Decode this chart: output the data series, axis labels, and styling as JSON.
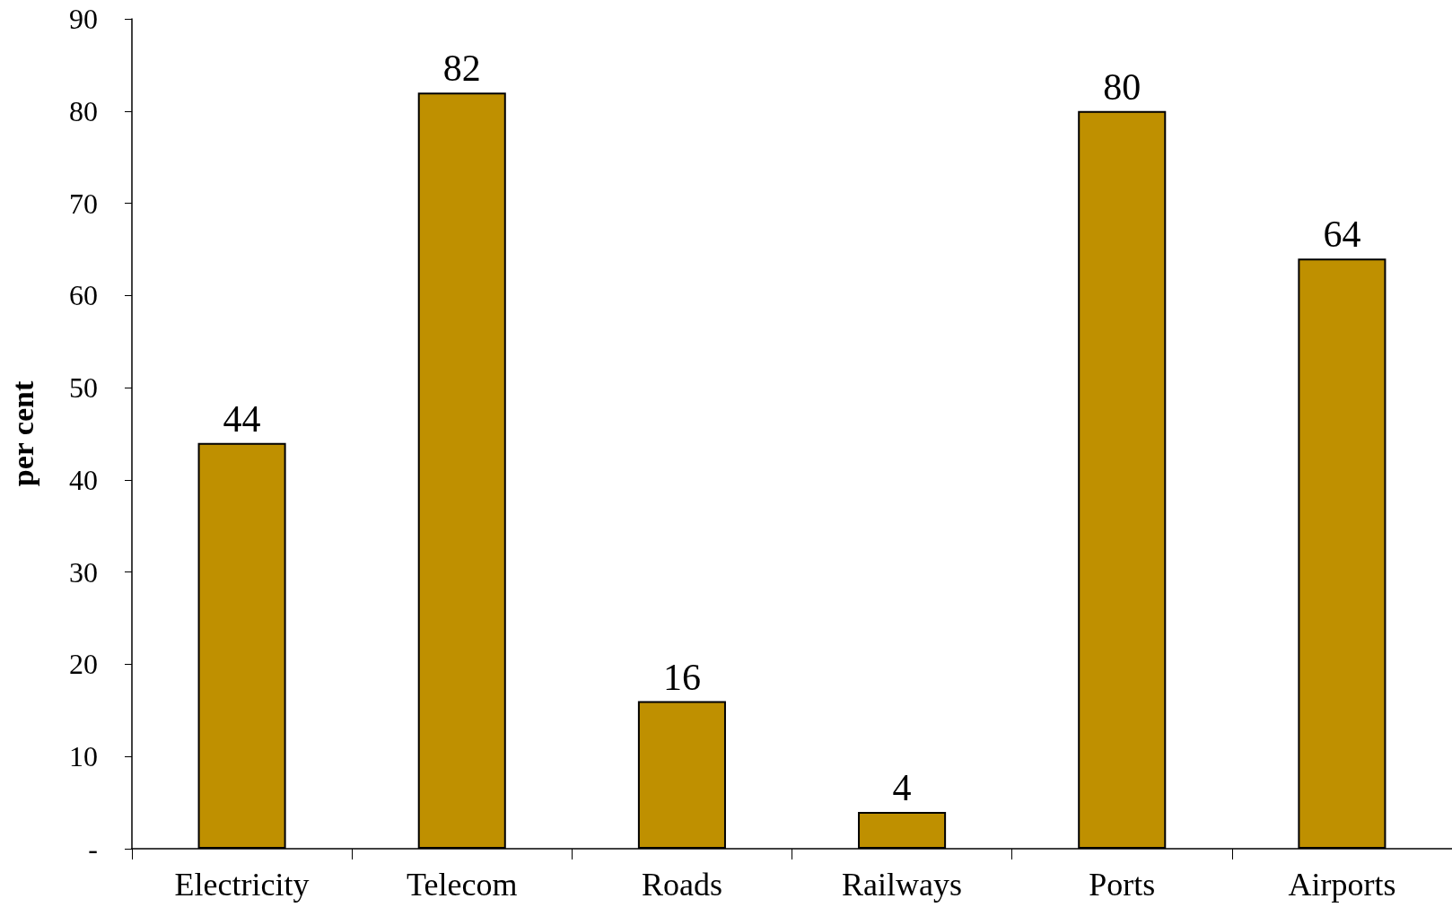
{
  "chart_data": {
    "type": "bar",
    "ylabel": "per cent",
    "categories": [
      "Electricity",
      "Telecom",
      "Roads",
      "Railways",
      "Ports",
      "Airports"
    ],
    "values": [
      44,
      82,
      16,
      4,
      80,
      64
    ],
    "color": "#bf9000",
    "ylim": [
      0,
      90
    ],
    "yticks": [
      {
        "value": 0,
        "label": "-"
      },
      10,
      20,
      30,
      40,
      50,
      60,
      70,
      80,
      90
    ],
    "data_labels": true,
    "grid": false
  }
}
